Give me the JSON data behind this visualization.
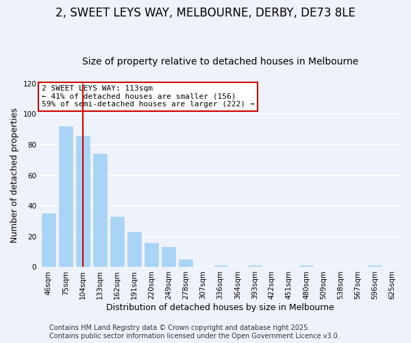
{
  "title": "2, SWEET LEYS WAY, MELBOURNE, DERBY, DE73 8LE",
  "subtitle": "Size of property relative to detached houses in Melbourne",
  "xlabel": "Distribution of detached houses by size in Melbourne",
  "ylabel": "Number of detached properties",
  "categories": [
    "46sqm",
    "75sqm",
    "104sqm",
    "133sqm",
    "162sqm",
    "191sqm",
    "220sqm",
    "249sqm",
    "278sqm",
    "307sqm",
    "336sqm",
    "364sqm",
    "393sqm",
    "422sqm",
    "451sqm",
    "480sqm",
    "509sqm",
    "538sqm",
    "567sqm",
    "596sqm",
    "625sqm"
  ],
  "values": [
    35,
    92,
    86,
    74,
    33,
    23,
    16,
    13,
    5,
    0,
    1,
    0,
    1,
    0,
    0,
    1,
    0,
    0,
    0,
    1,
    0
  ],
  "bar_color": "#aad4f5",
  "bar_edge_color": "#aad4f5",
  "vline_x": 2,
  "vline_color": "#cc0000",
  "vline_label": "2 SWEET LEYS WAY: 113sqm",
  "annotation_line1": "← 41% of detached houses are smaller (156)",
  "annotation_line2": "59% of semi-detached houses are larger (222) →",
  "annotation_box_edgecolor": "#cc0000",
  "ylim": [
    0,
    120
  ],
  "yticks": [
    0,
    20,
    40,
    60,
    80,
    100,
    120
  ],
  "footer1": "Contains HM Land Registry data © Crown copyright and database right 2025.",
  "footer2": "Contains public sector information licensed under the Open Government Licence v3.0.",
  "background_color": "#eef2fa",
  "grid_color": "#ffffff",
  "title_fontsize": 12,
  "subtitle_fontsize": 10,
  "axis_label_fontsize": 9,
  "tick_fontsize": 7.5,
  "footer_fontsize": 7,
  "ann_fontsize": 8
}
